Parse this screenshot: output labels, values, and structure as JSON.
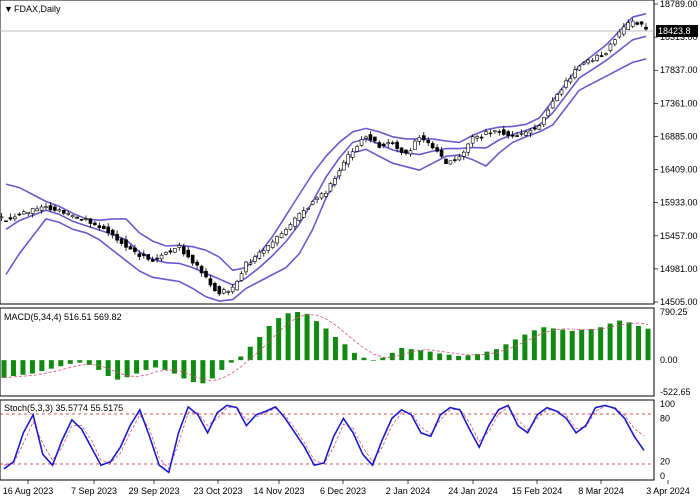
{
  "chart_title": "FDAX,Daily",
  "price_axis_ticks": [
    "18789.00",
    "18313.00",
    "17837.00",
    "17361.00",
    "16885.00",
    "16409.00",
    "15933.00",
    "15457.00",
    "14981.00",
    "14505.00"
  ],
  "current_price": "18423.8",
  "macd_label": "MACD(5,34,4) 516.51 569.82",
  "macd_axis_ticks": [
    "790.25",
    "0.00",
    "-522.65"
  ],
  "stoch_label": "Stoch(5,3,3) 35.5774 55.5175",
  "stoch_axis_ticks": [
    "100",
    "80",
    "20",
    "0"
  ],
  "date_ticks": [
    "16 Aug 2023",
    "7 Sep 2023",
    "29 Sep 2023",
    "23 Oct 2023",
    "14 Nov 2023",
    "6 Dec 2023",
    "2 Jan 2024",
    "24 Jan 2024",
    "15 Feb 2024",
    "8 Mar 2024",
    "3 Apr 2024"
  ],
  "colors": {
    "candle": "#000000",
    "bands": "#6a5acd",
    "macd_hist": "#118a11",
    "macd_signal": "#d64f7a",
    "stoch_main": "#1a1acb",
    "stoch_signal": "#d64f7a",
    "level_lines": "#c81e1e"
  },
  "chart_data": [
    {
      "type": "candlestick",
      "title": "FDAX,Daily",
      "ylim": [
        14505,
        18789
      ],
      "x_start": "2023-08-16",
      "x_end": "2024-04-03",
      "closes": [
        15700,
        15760,
        15820,
        15880,
        15800,
        15720,
        15690,
        15600,
        15480,
        15320,
        15180,
        15120,
        15220,
        15300,
        15080,
        14860,
        14620,
        14700,
        15050,
        15200,
        15350,
        15550,
        15750,
        15950,
        16100,
        16400,
        16700,
        16900,
        16750,
        16780,
        16620,
        16880,
        16750,
        16500,
        16580,
        16850,
        16920,
        16980,
        16880,
        16950,
        17050,
        17400,
        17650,
        17900,
        17980,
        18100,
        18380,
        18550,
        18423.8
      ],
      "upper_band": [
        16200,
        16150,
        16050,
        15950,
        15880,
        15780,
        15700,
        15680,
        15700,
        15700,
        15500,
        15380,
        15310,
        15320,
        15300,
        15250,
        15150,
        14960,
        15000,
        15200,
        15450,
        15750,
        16050,
        16350,
        16600,
        16800,
        16950,
        17000,
        16950,
        16880,
        16850,
        16850,
        16850,
        16820,
        16800,
        16900,
        16980,
        17020,
        17030,
        17060,
        17150,
        17400,
        17650,
        17900,
        18050,
        18200,
        18400,
        18600,
        18650
      ],
      "lower_band": [
        14900,
        15200,
        15450,
        15700,
        15650,
        15550,
        15500,
        15400,
        15250,
        15100,
        14950,
        14860,
        14830,
        14800,
        14700,
        14580,
        14520,
        14540,
        14700,
        14800,
        14900,
        15000,
        15200,
        15550,
        16000,
        16350,
        16650,
        16700,
        16600,
        16500,
        16450,
        16400,
        16500,
        16600,
        16620,
        16550,
        16460,
        16650,
        16800,
        16880,
        16950,
        17050,
        17300,
        17550,
        17650,
        17750,
        17850,
        17950,
        18000
      ]
    },
    {
      "type": "bar",
      "title": "MACD(5,34,4)",
      "values_main": [
        516.51
      ],
      "values_signal": [
        569.82
      ],
      "ylim": [
        -522.65,
        790.25
      ],
      "histogram": [
        -290,
        -260,
        -240,
        -220,
        -180,
        -140,
        -100,
        -60,
        -40,
        -80,
        -160,
        -260,
        -320,
        -280,
        -220,
        -160,
        -120,
        -160,
        -220,
        -300,
        -360,
        -380,
        -300,
        -160,
        -40,
        60,
        220,
        380,
        560,
        690,
        770,
        790,
        760,
        640,
        520,
        380,
        260,
        120,
        40,
        -10,
        40,
        120,
        200,
        180,
        160,
        140,
        110,
        90,
        70,
        80,
        100,
        140,
        180,
        260,
        340,
        420,
        490,
        540,
        520,
        500,
        480,
        500,
        510,
        540,
        600,
        650,
        620,
        560,
        516
      ]
    },
    {
      "type": "line",
      "title": "Stoch(5,3,3)",
      "values_main": [
        35.5774
      ],
      "values_signal": [
        55.5175
      ],
      "levels": [
        80,
        20
      ],
      "ylim": [
        0,
        100
      ],
      "k_line": [
        10,
        20,
        60,
        85,
        30,
        15,
        50,
        78,
        65,
        40,
        15,
        20,
        40,
        70,
        92,
        55,
        15,
        5,
        60,
        96,
        85,
        60,
        88,
        98,
        95,
        70,
        85,
        90,
        96,
        80,
        60,
        40,
        15,
        18,
        55,
        80,
        60,
        30,
        15,
        50,
        80,
        92,
        85,
        60,
        55,
        85,
        95,
        92,
        65,
        40,
        70,
        92,
        98,
        70,
        60,
        85,
        95,
        90,
        80,
        60,
        70,
        95,
        98,
        94,
        80,
        55,
        35.5774
      ],
      "d_line": [
        15,
        18,
        45,
        75,
        45,
        22,
        40,
        70,
        70,
        50,
        22,
        18,
        32,
        60,
        85,
        65,
        25,
        10,
        45,
        88,
        88,
        70,
        80,
        95,
        96,
        78,
        82,
        88,
        94,
        84,
        66,
        46,
        22,
        17,
        40,
        72,
        66,
        40,
        20,
        40,
        70,
        88,
        88,
        68,
        58,
        78,
        92,
        93,
        74,
        48,
        62,
        86,
        96,
        78,
        64,
        80,
        92,
        91,
        84,
        66,
        68,
        90,
        97,
        95,
        84,
        66,
        55.5175
      ]
    }
  ]
}
